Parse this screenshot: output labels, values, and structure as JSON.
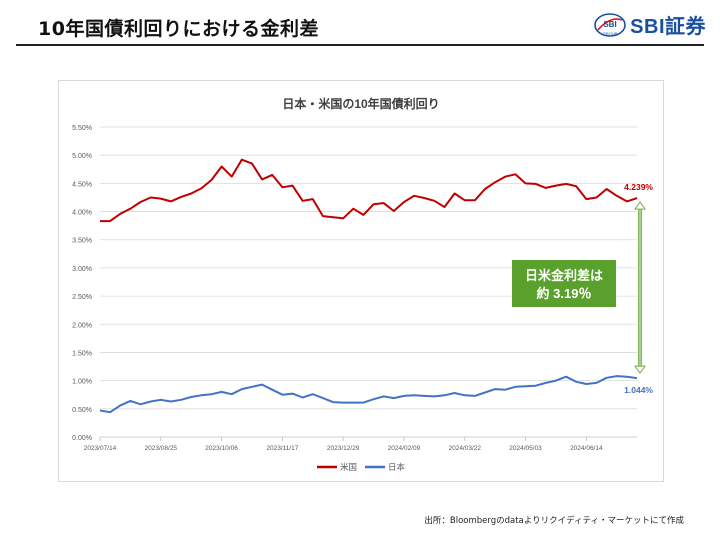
{
  "page": {
    "title": "10年国債利回りにおける金利差",
    "logo": {
      "mark": "SBI",
      "mark_sub": "GROUP",
      "text": "SBI証券"
    },
    "source": "出所：Bloombergのdataよりリクイディティ・マーケットにて作成"
  },
  "chart_data": {
    "type": "line",
    "title": "日本・米国の10年国債利回り",
    "x_tick_labels": [
      "2023/07/14",
      "2023/08/25",
      "2023/10/06",
      "2023/11/17",
      "2023/12/29",
      "2024/02/09",
      "2024/03/22",
      "2024/05/03",
      "2024/06/14"
    ],
    "x_tick_positions": [
      0,
      6,
      12,
      18,
      24,
      30,
      36,
      42,
      48
    ],
    "ylim": [
      0.0,
      5.5
    ],
    "y_ticks": [
      0.0,
      0.5,
      1.0,
      1.5,
      2.0,
      2.5,
      3.0,
      3.5,
      4.0,
      4.5,
      5.0,
      5.5
    ],
    "y_tick_labels": [
      "0.00%",
      "0.50%",
      "1.00%",
      "1.50%",
      "2.00%",
      "2.50%",
      "3.00%",
      "3.50%",
      "4.00%",
      "4.50%",
      "5.00%",
      "5.50%"
    ],
    "series": [
      {
        "name": "米国",
        "color": "#c00000",
        "values": [
          3.83,
          3.83,
          3.96,
          4.05,
          4.17,
          4.25,
          4.23,
          4.18,
          4.26,
          4.32,
          4.41,
          4.56,
          4.8,
          4.62,
          4.92,
          4.85,
          4.57,
          4.65,
          4.43,
          4.46,
          4.19,
          4.22,
          3.92,
          3.9,
          3.88,
          4.05,
          3.94,
          4.13,
          4.15,
          4.01,
          4.17,
          4.28,
          4.24,
          4.19,
          4.08,
          4.32,
          4.2,
          4.2,
          4.4,
          4.52,
          4.62,
          4.66,
          4.5,
          4.49,
          4.42,
          4.46,
          4.49,
          4.45,
          4.22,
          4.25,
          4.4,
          4.28,
          4.18,
          4.239
        ],
        "end_label": "4.239%"
      },
      {
        "name": "日本",
        "color": "#4472c4",
        "values": [
          0.47,
          0.44,
          0.56,
          0.64,
          0.58,
          0.63,
          0.66,
          0.63,
          0.66,
          0.71,
          0.74,
          0.76,
          0.8,
          0.76,
          0.85,
          0.89,
          0.93,
          0.84,
          0.75,
          0.77,
          0.7,
          0.76,
          0.69,
          0.62,
          0.61,
          0.61,
          0.61,
          0.67,
          0.72,
          0.69,
          0.73,
          0.74,
          0.73,
          0.72,
          0.74,
          0.78,
          0.74,
          0.73,
          0.79,
          0.85,
          0.84,
          0.89,
          0.9,
          0.91,
          0.96,
          1.0,
          1.07,
          0.98,
          0.94,
          0.96,
          1.05,
          1.08,
          1.07,
          1.044
        ],
        "end_label": "1.044%"
      }
    ],
    "annotation": {
      "line1": "日米金利差は",
      "line2": "約 3.19％",
      "bg_color": "#5aa02c"
    },
    "legend_position": "bottom",
    "grid": true
  }
}
